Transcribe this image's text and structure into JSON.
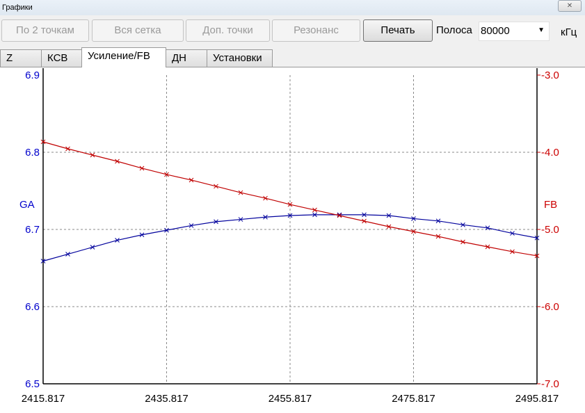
{
  "window": {
    "title": "Графики",
    "close_icon": "close-icon"
  },
  "toolbar": {
    "buttons": [
      {
        "label": "По 2 точкам",
        "enabled": false
      },
      {
        "label": "Вся сетка",
        "enabled": false
      },
      {
        "label": "Доп. точки",
        "enabled": false
      },
      {
        "label": "Резонанс",
        "enabled": false
      },
      {
        "label": "Печать",
        "enabled": true
      }
    ],
    "band_label": "Полоса",
    "band_value": "80000",
    "unit": "кГц"
  },
  "tabs": [
    {
      "label": "Z"
    },
    {
      "label": "КСВ"
    },
    {
      "label": "Усиление/FB",
      "active": true
    },
    {
      "label": "ДН"
    },
    {
      "label": "Установки"
    }
  ],
  "chart_data": {
    "type": "line",
    "x": [
      2415.817,
      2419.817,
      2423.817,
      2427.817,
      2431.817,
      2435.817,
      2439.817,
      2443.817,
      2447.817,
      2451.817,
      2455.817,
      2459.817,
      2463.817,
      2467.817,
      2471.817,
      2475.817,
      2479.817,
      2483.817,
      2487.817,
      2491.817,
      2495.817
    ],
    "xlim": [
      2415.817,
      2495.817
    ],
    "xticks": [
      "2415.817",
      "2435.817",
      "2455.817",
      "2475.817",
      "2495.817"
    ],
    "grid": true,
    "colors": {
      "left": "#0000cc",
      "right": "#cc0000"
    },
    "series": [
      {
        "name": "GA",
        "axis": "left",
        "color": "#00009c",
        "values": [
          6.659,
          6.668,
          6.677,
          6.686,
          6.693,
          6.699,
          6.705,
          6.71,
          6.713,
          6.716,
          6.718,
          6.719,
          6.719,
          6.719,
          6.718,
          6.714,
          6.711,
          6.706,
          6.702,
          6.695,
          6.689
        ]
      },
      {
        "name": "FB",
        "axis": "right",
        "color": "#c00000",
        "values": [
          -3.865,
          -3.955,
          -4.036,
          -4.117,
          -4.207,
          -4.288,
          -4.36,
          -4.441,
          -4.523,
          -4.595,
          -4.676,
          -4.748,
          -4.82,
          -4.892,
          -4.964,
          -5.027,
          -5.09,
          -5.162,
          -5.225,
          -5.288,
          -5.342
        ]
      }
    ],
    "left_axis": {
      "label": "GA",
      "ylim": [
        6.5,
        6.9
      ],
      "ticks": [
        "6.5",
        "6.6",
        "6.7",
        "6.8",
        "6.9"
      ]
    },
    "right_axis": {
      "label": "FB",
      "ylim": [
        -7.0,
        -3.0
      ],
      "ticks": [
        "-7.0",
        "-6.0",
        "-5.0",
        "-4.0",
        "-3.0"
      ]
    }
  }
}
